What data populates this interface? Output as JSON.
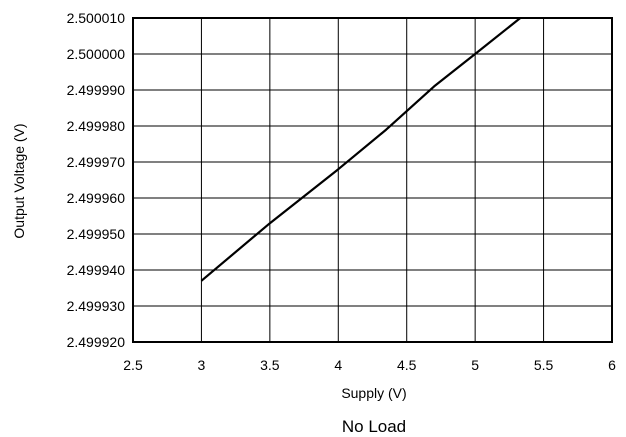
{
  "chart_data": {
    "type": "line",
    "title": "",
    "caption": "No Load",
    "xlabel": "Supply (V)",
    "ylabel": "Output Voltage (V)",
    "xlim": [
      2.5,
      6
    ],
    "ylim": [
      2.49992,
      2.50001
    ],
    "x_ticks": [
      "2.5",
      "3",
      "3.5",
      "4",
      "4.5",
      "5",
      "5.5",
      "6"
    ],
    "x_tick_values": [
      2.5,
      3,
      3.5,
      4,
      4.5,
      5,
      5.5,
      6
    ],
    "y_ticks": [
      "2.500010",
      "2.500000",
      "2.499990",
      "2.499980",
      "2.499970",
      "2.499960",
      "2.499950",
      "2.499940",
      "2.499930",
      "2.499920"
    ],
    "y_tick_values": [
      2.50001,
      2.5,
      2.49999,
      2.49998,
      2.49997,
      2.49996,
      2.49995,
      2.49994,
      2.49993,
      2.49992
    ],
    "grid": true,
    "legend": "none",
    "series": [
      {
        "color": "#000000",
        "x": [
          3.0,
          3.5,
          4.0,
          4.35,
          4.7,
          5.0,
          5.33
        ],
        "y": [
          2.499937,
          2.499953,
          2.499968,
          2.499979,
          2.499991,
          2.5,
          2.50001
        ]
      }
    ]
  }
}
